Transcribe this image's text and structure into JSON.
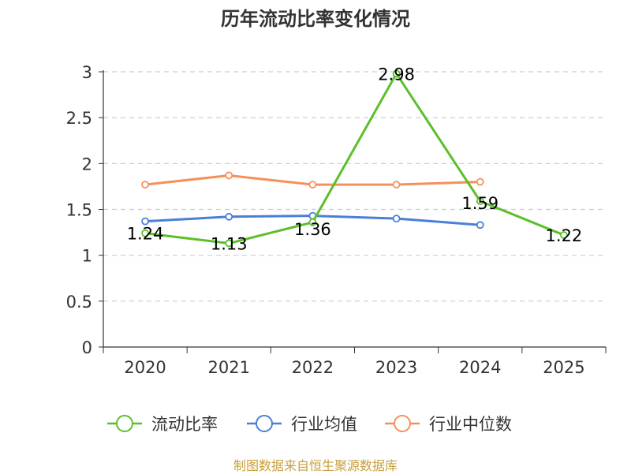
{
  "chart_data": {
    "type": "line",
    "title": "历年流动比率变化情况",
    "categories": [
      "2020",
      "2021",
      "2022",
      "2023",
      "2024",
      "2025"
    ],
    "y_ticks": [
      "0",
      "0.5",
      "1",
      "1.5",
      "2",
      "2.5",
      "3"
    ],
    "ylim": [
      0,
      3
    ],
    "grid": true,
    "legend_position": "bottom",
    "series": [
      {
        "name": "流动比率",
        "color": "#5cbf2a",
        "values": [
          1.24,
          1.13,
          1.36,
          2.98,
          1.59,
          1.22
        ],
        "labels": [
          "1.24",
          "1.13",
          "1.36",
          "2.98",
          "1.59",
          "1.22"
        ]
      },
      {
        "name": "行业均值",
        "color": "#4a7fd8",
        "values": [
          1.37,
          1.42,
          1.43,
          1.4,
          1.33,
          null
        ]
      },
      {
        "name": "行业中位数",
        "color": "#f5905a",
        "values": [
          1.77,
          1.87,
          1.77,
          1.77,
          1.8,
          null
        ]
      }
    ]
  },
  "footer": {
    "source": "制图数据来自恒生聚源数据库"
  }
}
